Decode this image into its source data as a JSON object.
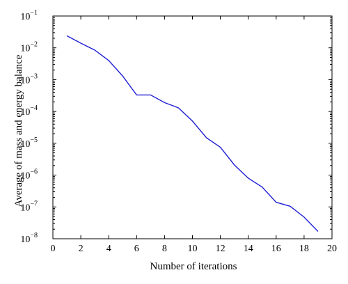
{
  "chart_data": {
    "type": "line",
    "title": "",
    "xlabel": "Number of iterations",
    "ylabel": "Average of mass and energy balance",
    "xlim": [
      0,
      20
    ],
    "ylim": [
      1e-08,
      0.1
    ],
    "yscale": "log",
    "grid": false,
    "legend": "none",
    "x_ticks": [
      {
        "value": 0,
        "label": "0"
      },
      {
        "value": 2,
        "label": "2"
      },
      {
        "value": 4,
        "label": "4"
      },
      {
        "value": 6,
        "label": "6"
      },
      {
        "value": 8,
        "label": "8"
      },
      {
        "value": 10,
        "label": "10"
      },
      {
        "value": 12,
        "label": "12"
      },
      {
        "value": 14,
        "label": "14"
      },
      {
        "value": 16,
        "label": "16"
      },
      {
        "value": 18,
        "label": "18"
      },
      {
        "value": 20,
        "label": "20"
      }
    ],
    "y_ticks": [
      {
        "exp": -8,
        "base": "10",
        "power": "−8"
      },
      {
        "exp": -7,
        "base": "10",
        "power": "−7"
      },
      {
        "exp": -6,
        "base": "10",
        "power": "−6"
      },
      {
        "exp": -5,
        "base": "10",
        "power": "−5"
      },
      {
        "exp": -4,
        "base": "10",
        "power": "−4"
      },
      {
        "exp": -3,
        "base": "10",
        "power": "−3"
      },
      {
        "exp": -2,
        "base": "10",
        "power": "−2"
      },
      {
        "exp": -1,
        "base": "10",
        "power": "−1"
      }
    ],
    "series": [
      {
        "color": "#1f1fd6",
        "x": [
          1,
          2,
          3,
          4,
          5,
          6,
          7,
          8,
          9,
          10,
          11,
          12,
          13,
          14,
          15,
          16,
          17,
          18,
          19
        ],
        "y": [
          0.024,
          0.014,
          0.0085,
          0.004,
          0.0013,
          0.00033,
          0.00033,
          0.00019,
          0.00013,
          5e-05,
          1.5e-05,
          7.5e-06,
          2.1e-06,
          8e-07,
          4.2e-07,
          1.4e-07,
          1.05e-07,
          4.8e-08,
          1.7e-08
        ]
      }
    ]
  }
}
